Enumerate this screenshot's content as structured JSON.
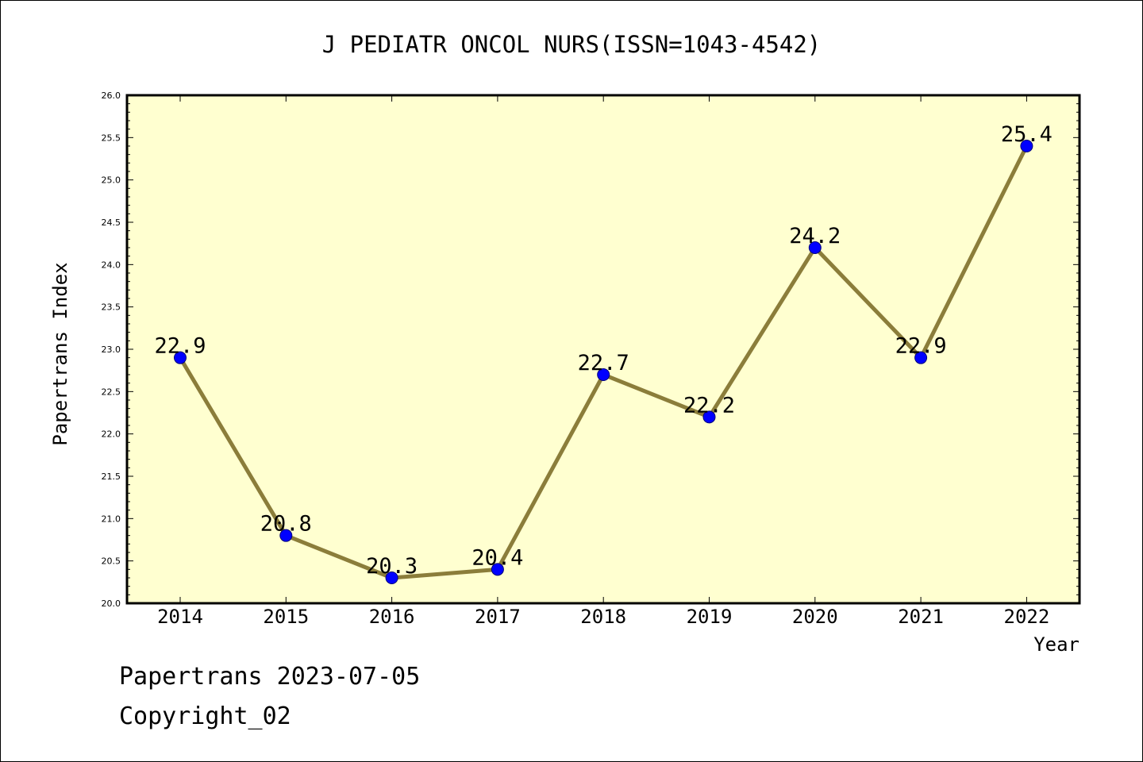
{
  "chart_data": {
    "type": "line",
    "title": "J PEDIATR ONCOL NURS(ISSN=1043-4542)",
    "xlabel": "Year",
    "ylabel": "Papertrans Index",
    "categories": [
      "2014",
      "2015",
      "2016",
      "2017",
      "2018",
      "2019",
      "2020",
      "2021",
      "2022"
    ],
    "series": [
      {
        "values": [
          22.9,
          20.8,
          20.3,
          20.4,
          22.7,
          22.2,
          24.2,
          22.9,
          25.4
        ],
        "labels": [
          "22.9",
          "20.8",
          "20.3",
          "20.4",
          "22.7",
          "22.2",
          "24.2",
          "22.9",
          "25.4"
        ]
      }
    ],
    "ylim": [
      20.0,
      26.0
    ],
    "yticks": [
      "20.0",
      "20.5",
      "21.0",
      "21.5",
      "22.0",
      "22.5",
      "23.0",
      "23.5",
      "24.0",
      "24.5",
      "25.0",
      "25.5",
      "26.0"
    ],
    "grid": false,
    "colors": {
      "plot_background": "#ffffd0",
      "line": "#8b7d3a",
      "marker": "#0000ff"
    }
  },
  "footer": {
    "line1": "Papertrans 2023-07-05",
    "line2": "Copyright_02"
  }
}
